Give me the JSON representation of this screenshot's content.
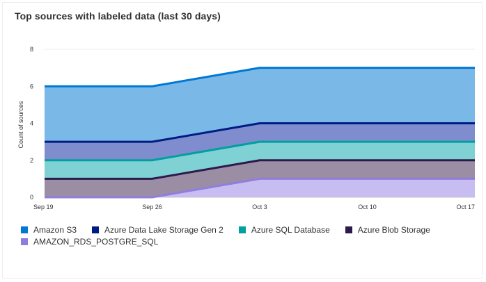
{
  "card": {
    "title": "Top sources with labeled data (last 30 days)"
  },
  "chart_data": {
    "type": "area",
    "stacked": true,
    "x": [
      "Sep 19",
      "Sep 26",
      "Oct 3",
      "Oct 10",
      "Oct 17"
    ],
    "ylabel": "Count of sources",
    "xlabel": "",
    "ylim": [
      0,
      8
    ],
    "yticks": [
      0,
      2,
      4,
      6,
      8
    ],
    "grid": true,
    "legend_position": "bottom",
    "series": [
      {
        "name": "Amazon S3",
        "color": "#0078d4",
        "fill": "#7ab8e8",
        "values": [
          3,
          3,
          3,
          3,
          3
        ]
      },
      {
        "name": "Azure Data Lake Storage Gen 2",
        "color": "#001c83",
        "fill": "#7f8ccd",
        "values": [
          1,
          1,
          1,
          1,
          1
        ]
      },
      {
        "name": "Azure SQL Database",
        "color": "#009fa0",
        "fill": "#7fd1d4",
        "values": [
          1,
          1,
          1,
          1,
          1
        ]
      },
      {
        "name": "Azure Blob Storage",
        "color": "#2d1a4c",
        "fill": "#9b8da3",
        "values": [
          1,
          1,
          1,
          1,
          1
        ]
      },
      {
        "name": "AMAZON_RDS_POSTGRE_SQL",
        "color": "#8f7ee0",
        "fill": "#c8bdf0",
        "values": [
          0,
          0,
          1,
          1,
          1
        ]
      }
    ]
  }
}
